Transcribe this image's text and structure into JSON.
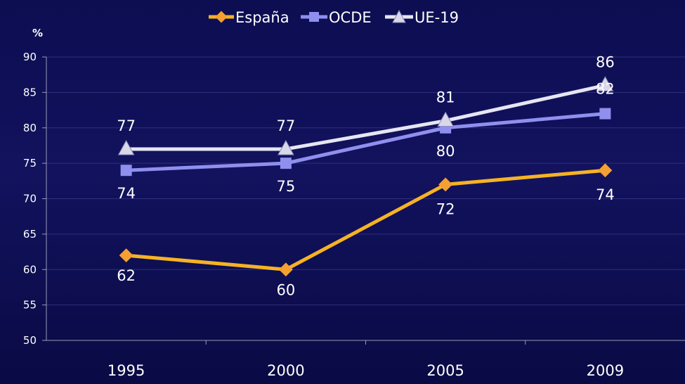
{
  "chart_data": {
    "type": "line",
    "unit_label": "%",
    "categories": [
      "1995",
      "2000",
      "2005",
      "2009"
    ],
    "ylim": [
      50,
      90
    ],
    "yticks": [
      50,
      55,
      60,
      65,
      70,
      75,
      80,
      85,
      90
    ],
    "grid": true,
    "legend_position": "top-center",
    "series": [
      {
        "name": "España",
        "color": "#f5b324",
        "marker": "diamond",
        "values": [
          62,
          60,
          72,
          74
        ]
      },
      {
        "name": "OCDE",
        "color": "#8f8fee",
        "marker": "square",
        "values": [
          74,
          75,
          80,
          82
        ]
      },
      {
        "name": "UE-19",
        "color": "#e6e6f2",
        "marker": "triangle",
        "values": [
          77,
          77,
          81,
          86
        ]
      }
    ]
  }
}
